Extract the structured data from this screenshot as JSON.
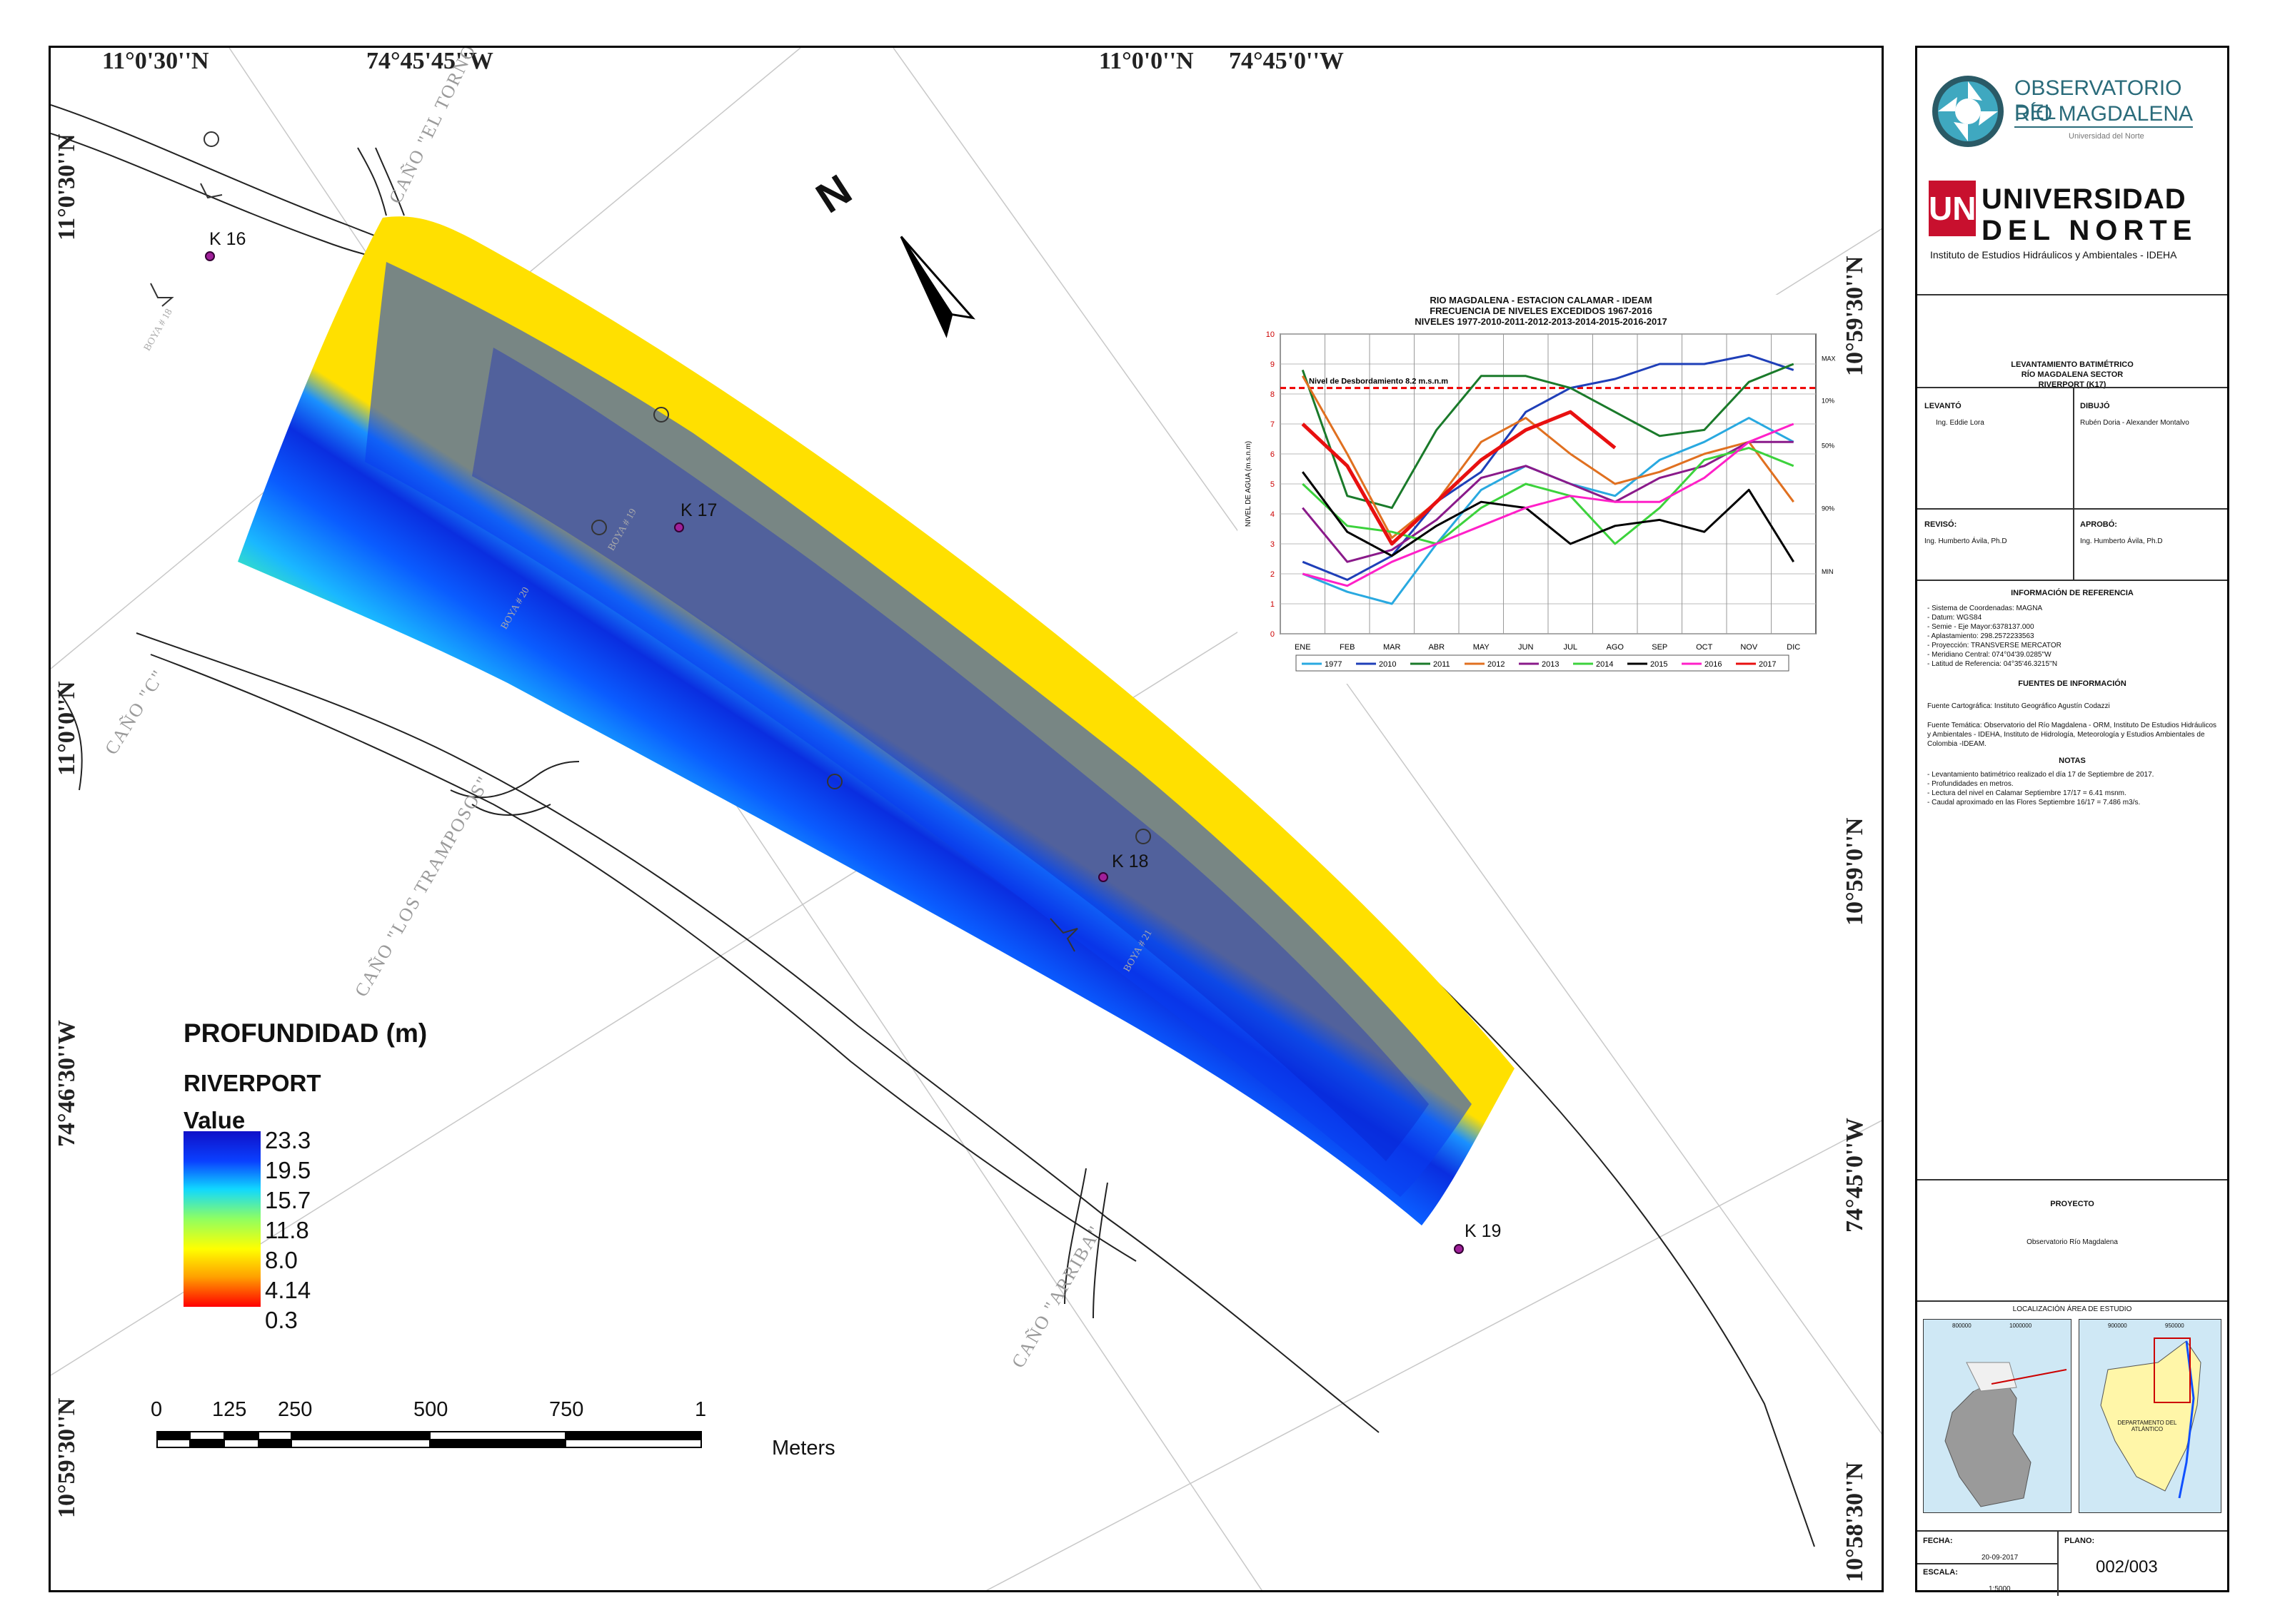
{
  "map": {
    "coords": {
      "top": [
        "11°0'30''N",
        "74°45'45''W",
        "11°0'0''N",
        "74°45'0''W"
      ],
      "left": [
        "11°0'30''N",
        "11°0'0''N",
        "74°46'30''W",
        "10°59'30''N"
      ],
      "right": [
        "10°59'30''N",
        "10°59'0''N",
        "74°45'0''W",
        "10°58'30''N"
      ]
    },
    "canos": [
      "CAÑO \"EL TORNO\"",
      "CAÑO \"C\"",
      "CAÑO \"LOS TRAMPOSOS\"",
      "CAÑO \"ARRIBA\""
    ],
    "boyas": [
      "BOYA # 18",
      "BOYA # 19",
      "BOYA # 20",
      "BOYA # 21"
    ],
    "points": [
      "K 16",
      "K 17",
      "K 18",
      "K 19"
    ],
    "north_label": "N"
  },
  "legend": {
    "title": "PROFUNDIDAD (m)",
    "subtitle": "RIVERPORT",
    "value_label": "Value",
    "values": [
      "23.3",
      "19.5",
      "15.7",
      "11.8",
      "8.0",
      "4.14",
      "0.3"
    ]
  },
  "scalebar": {
    "ticks": [
      "0",
      "125",
      "250",
      "500",
      "750",
      "1"
    ],
    "unit": "Meters"
  },
  "chart_data": {
    "type": "line",
    "title": "RIO MAGDALENA - ESTACION CALAMAR - IDEAM",
    "subtitle1": "FRECUENCIA DE NIVELES EXCEDIDOS 1967-2016",
    "subtitle2": "NIVELES 1977-2010-2011-2012-2013-2014-2015-2016-2017",
    "ylabel": "NIVEL DE AGUA (m.s.n.m)",
    "ylim": [
      0,
      10
    ],
    "yticks": [
      "0",
      "1",
      "2",
      "3",
      "4",
      "5",
      "6",
      "7",
      "8",
      "9",
      "10"
    ],
    "categories": [
      "ENE",
      "FEB",
      "MAR",
      "ABR",
      "MAY",
      "JUN",
      "JUL",
      "AGO",
      "SEP",
      "OCT",
      "NOV",
      "DIC"
    ],
    "flood_label": "Nivel de Desbordamiento 8.2 m.s.n.m",
    "flood_level": 8.2,
    "right_labels": [
      "MAX",
      "10%",
      "50%",
      "90%",
      "MIN"
    ],
    "series": [
      {
        "name": "1977",
        "color": "#29a9e0",
        "values": [
          2.0,
          1.4,
          1.0,
          3.0,
          4.8,
          5.6,
          5.0,
          4.6,
          5.8,
          6.4,
          7.2,
          6.4
        ]
      },
      {
        "name": "2010",
        "color": "#1f3fb8",
        "values": [
          2.4,
          1.8,
          2.6,
          4.4,
          5.4,
          7.4,
          8.2,
          8.5,
          9.0,
          9.0,
          9.3,
          8.8
        ]
      },
      {
        "name": "2011",
        "color": "#1a7a2a",
        "values": [
          8.8,
          4.6,
          4.2,
          6.8,
          8.6,
          8.6,
          8.2,
          7.4,
          6.6,
          6.8,
          8.4,
          9.0
        ]
      },
      {
        "name": "2012",
        "color": "#e07020",
        "values": [
          8.6,
          6.0,
          3.2,
          4.4,
          6.4,
          7.2,
          6.0,
          5.0,
          5.4,
          6.0,
          6.4,
          4.4
        ]
      },
      {
        "name": "2013",
        "color": "#8a1a8a",
        "values": [
          4.2,
          2.4,
          2.8,
          3.8,
          5.2,
          5.6,
          5.0,
          4.4,
          5.2,
          5.6,
          6.4,
          6.4
        ]
      },
      {
        "name": "2014",
        "color": "#3cd23c",
        "values": [
          5.0,
          3.6,
          3.4,
          3.0,
          4.2,
          5.0,
          4.6,
          3.0,
          4.2,
          5.8,
          6.2,
          5.6
        ]
      },
      {
        "name": "2015",
        "color": "#000000",
        "values": [
          5.4,
          3.4,
          2.6,
          3.6,
          4.4,
          4.2,
          3.0,
          3.6,
          3.8,
          3.4,
          4.8,
          2.4
        ]
      },
      {
        "name": "2016",
        "color": "#ff20c8",
        "values": [
          2.0,
          1.6,
          2.4,
          3.0,
          3.6,
          4.2,
          4.6,
          4.4,
          4.4,
          5.2,
          6.4,
          7.0
        ]
      },
      {
        "name": "2017",
        "color": "#e81010",
        "values": [
          7.0,
          5.6,
          3.0,
          4.4,
          5.8,
          6.8,
          7.4,
          6.2,
          null,
          null,
          null,
          null
        ]
      }
    ]
  },
  "panel": {
    "logo1_line1": "OBSERVATORIO DEL",
    "logo1_line2": "RÍO MAGDALENA",
    "logo1_line3": "Universidad del Norte",
    "logo2_mark": "UN",
    "logo2_line1": "UNIVERSIDAD",
    "logo2_line2": "DEL NORTE",
    "logo2_line3": "Instituto de Estudios Hidráulicos y Ambientales - IDEHA",
    "title_lines": [
      "LEVANTAMIENTO BATIMÉTRICO",
      "RÍO MAGDALENA SECTOR",
      "RIVERPORT (K17)"
    ],
    "levanto_label": "LEVANTÓ",
    "levanto_value": "Ing. Eddie Lora",
    "dibujo_label": "DIBUJÓ",
    "dibujo_value": "Rubén Doria - Alexander Montalvo",
    "reviso_label": "REVISÓ:",
    "reviso_value": "Ing. Humberto Ávila, Ph.D",
    "aprobo_label": "APROBÓ:",
    "aprobo_value": "Ing. Humberto Ávila, Ph.D",
    "info_ref_title": "INFORMACIÓN DE REFERENCIA",
    "info_ref": [
      "- Sistema de Coordenadas: MAGNA",
      "- Datum: WGS84",
      "- Semie - Eje Mayor:6378137.000",
      "- Aplastamiento: 298.2572233563",
      "- Proyección: TRANSVERSE MERCATOR",
      "- Meridiano Central: 074°04'39.0285''W",
      "- Latitud de Referencia: 04°35'46.3215''N"
    ],
    "fuentes_title": "FUENTES DE INFORMACIÓN",
    "fuente_cartografica": "Fuente Cartográfica: Instituto Geográfico Agustín Codazzi",
    "fuente_tematica": "Fuente Temática: Observatorio del Río Magdalena - ORM, Instituto De Estudios Hidráulicos y Ambientales - IDEHA, Instituto de Hidrología, Meteorología y Estudios Ambientales de Colombia -IDEAM.",
    "notas_title": "NOTAS",
    "notas": [
      "- Levantamiento batimétrico realizado el día 17 de Septiembre de 2017.",
      "- Profundidades en metros.",
      "- Lectura del nivel en Calamar Septiembre 17/17 = 6.41 msnm.",
      "- Caudal aproximado en las Flores Septiembre 16/17 = 7.486 m3/s."
    ],
    "proyecto_label": "PROYECTO",
    "proyecto_value": "Observatorio Río Magdalena",
    "localizacion_title": "LOCALIZACIÓN ÁREA DE ESTUDIO",
    "loc_ticks_left": [
      "800000",
      "1000000"
    ],
    "loc_ticks_right": [
      "900000",
      "950000"
    ],
    "loc_dept": "DEPARTAMENTO DEL ATLÁNTICO",
    "fecha_label": "FECHA:",
    "fecha_value": "20-09-2017",
    "plano_label": "PLANO:",
    "plano_value": "002/003",
    "escala_label": "ESCALA:",
    "escala_value": "1:5000"
  }
}
